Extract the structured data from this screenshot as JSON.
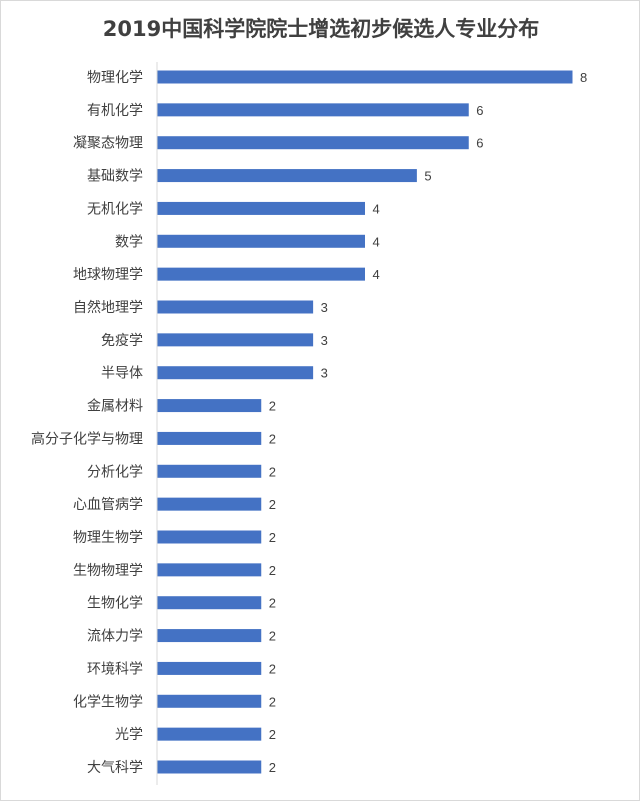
{
  "chart_data": {
    "type": "bar",
    "orientation": "horizontal",
    "title": "2019中国科学院院士增选初步候选人专业分布",
    "categories": [
      "物理化学",
      "有机化学",
      "凝聚态物理",
      "基础数学",
      "无机化学",
      "数学",
      "地球物理学",
      "自然地理学",
      "免疫学",
      "半导体",
      "金属材料",
      "高分子化学与物理",
      "分析化学",
      "心血管病学",
      "物理生物学",
      "生物物理学",
      "生物化学",
      "流体力学",
      "环境科学",
      "化学生物学",
      "光学",
      "大气科学"
    ],
    "values": [
      8,
      6,
      6,
      5,
      4,
      4,
      4,
      3,
      3,
      3,
      2,
      2,
      2,
      2,
      2,
      2,
      2,
      2,
      2,
      2,
      2,
      2
    ],
    "xlim": [
      0,
      8
    ],
    "data_labels": true,
    "grid": false,
    "legend": "none",
    "bar_color": "#4472C4"
  }
}
